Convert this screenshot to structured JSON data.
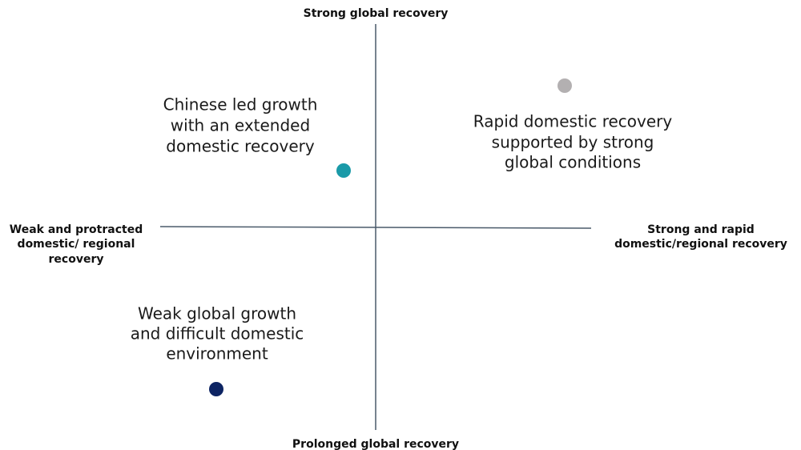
{
  "axes": {
    "top": "Strong global recovery",
    "bottom": "Prolonged global recovery",
    "left": [
      "Weak and protracted",
      "domestic/ regional",
      "recovery"
    ],
    "right": [
      "Strong and rapid",
      "domestic/regional recovery"
    ]
  },
  "scenarios": [
    {
      "lines": [
        "Chinese led growth",
        "with an extended",
        "domestic recovery"
      ]
    },
    {
      "lines": [
        "Rapid domestic recovery",
        "supported by strong",
        "global conditions"
      ]
    },
    {
      "lines": [
        "Weak global growth",
        "and difficult domestic",
        "environment"
      ]
    }
  ]
}
